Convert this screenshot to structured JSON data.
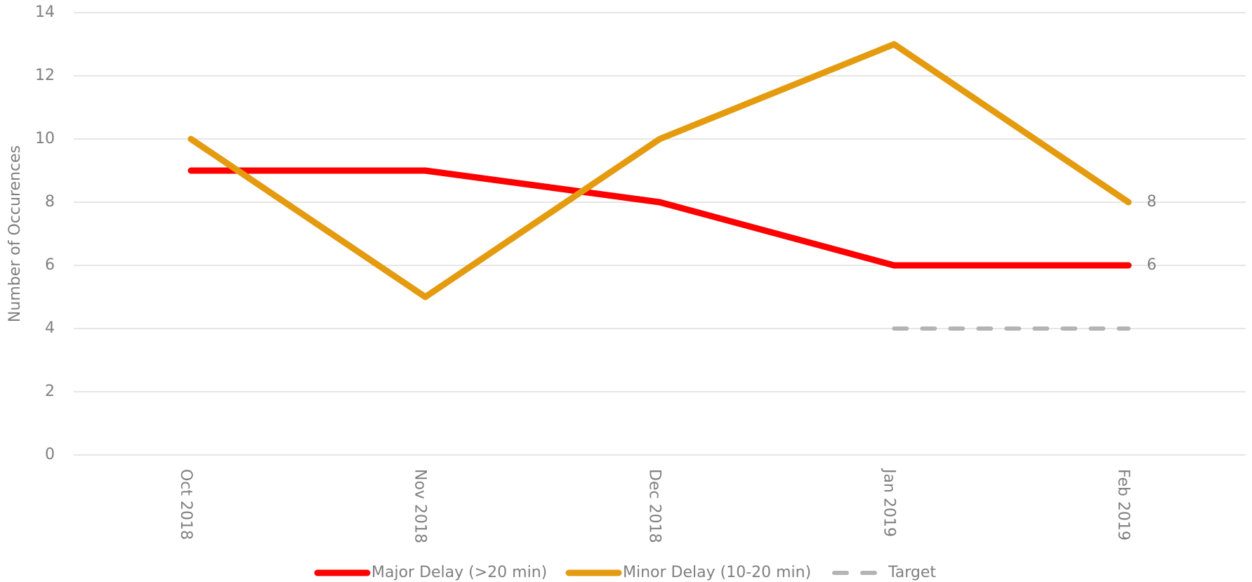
{
  "chart_data": {
    "type": "line",
    "y_label": "Number of Occurences",
    "categories": [
      "Oct 2018",
      "Nov 2018",
      "Dec 2018",
      "Jan 2019",
      "Feb 2019"
    ],
    "series": [
      {
        "name": "Major Delay (>20 min)",
        "color": "#ff0000",
        "values": [
          9,
          9,
          8,
          6,
          6
        ]
      },
      {
        "name": "Minor Delay (10-20 min)",
        "color": "#e49b0f",
        "values": [
          10,
          5,
          10,
          13,
          8
        ]
      },
      {
        "name": "Target",
        "color": "#b4b4b4",
        "dashed": true,
        "values": [
          null,
          null,
          null,
          4,
          4
        ]
      }
    ],
    "ylim": [
      0,
      14
    ],
    "yticks": [
      0,
      2,
      4,
      6,
      8,
      10,
      12,
      14
    ],
    "grid": true,
    "legend": "bottom"
  }
}
